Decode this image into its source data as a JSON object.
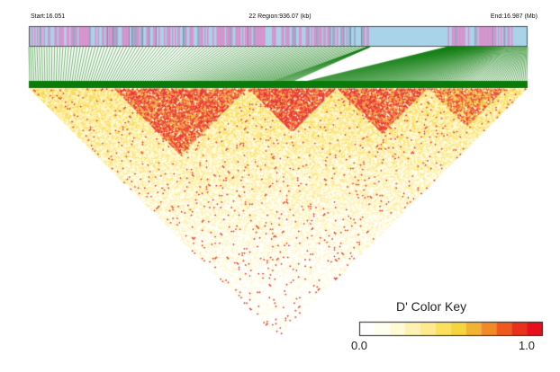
{
  "header": {
    "start_label": "Start:16.051",
    "region_label": "22 Region:936.07 (kb)",
    "end_label": "End:16.987 (Mb)"
  },
  "color_key": {
    "title": "D' Color Key",
    "min_label": "0.0",
    "max_label": "1.0",
    "colors": [
      "#ffffff",
      "#ffffef",
      "#fff9d6",
      "#fff2b0",
      "#ffe98f",
      "#fae05e",
      "#f5d53d",
      "#f2b233",
      "#f08a28",
      "#ee5a1e",
      "#e8301a",
      "#e6101a"
    ]
  },
  "chart_data": {
    "type": "heatmap",
    "title": "",
    "region": {
      "chromosome": "22",
      "start_mb": 16.051,
      "end_mb": 16.987,
      "length_kb": 936.07
    },
    "gene_track_colors": {
      "gene": "#d98fc9",
      "intergenic": "#a9d3e8"
    },
    "connector_color": "#0a7a0a",
    "metric": "D'",
    "value_range": [
      0.0,
      1.0
    ],
    "ld_blocks": [
      {
        "from": 0.17,
        "to": 0.44,
        "mean_dprime": 0.85
      },
      {
        "from": 0.44,
        "to": 0.62,
        "mean_dprime": 0.9
      },
      {
        "from": 0.62,
        "to": 0.8,
        "mean_dprime": 0.85
      },
      {
        "from": 0.8,
        "to": 0.96,
        "mean_dprime": 0.75
      }
    ]
  }
}
